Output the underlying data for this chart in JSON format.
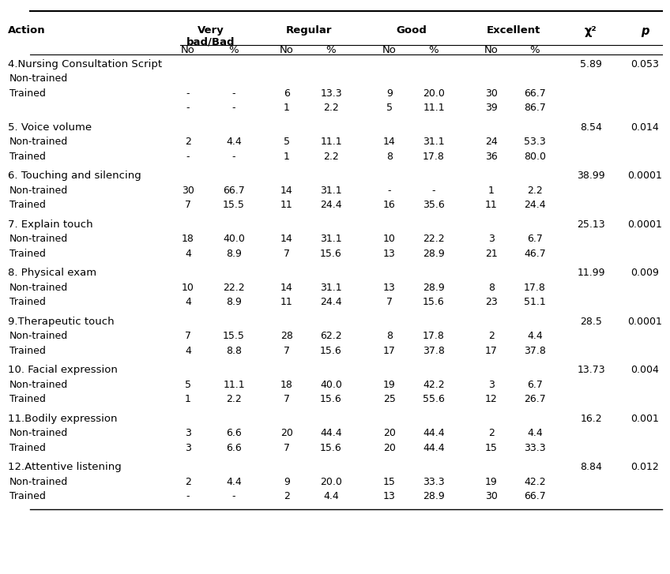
{
  "rows": [
    {
      "section": "4.Nursing Consultation Script",
      "chi2": "5.89",
      "p": "0.053",
      "sub": [
        {
          "label": "Non-trained",
          "vb_no": "",
          "vb_pct": "",
          "r_no": "",
          "r_pct": "",
          "g_no": "",
          "g_pct": "",
          "e_no": "",
          "e_pct": ""
        },
        {
          "label": "Trained",
          "vb_no": "-",
          "vb_pct": "-",
          "r_no": "6",
          "r_pct": "13.3",
          "g_no": "9",
          "g_pct": "20.0",
          "e_no": "30",
          "e_pct": "66.7"
        },
        {
          "label": "",
          "vb_no": "-",
          "vb_pct": "-",
          "r_no": "1",
          "r_pct": "2.2",
          "g_no": "5",
          "g_pct": "11.1",
          "e_no": "39",
          "e_pct": "86.7"
        }
      ]
    },
    {
      "section": "5. Voice volume",
      "chi2": "8.54",
      "p": "0.014",
      "sub": [
        {
          "label": "Non-trained",
          "vb_no": "2",
          "vb_pct": "4.4",
          "r_no": "5",
          "r_pct": "11.1",
          "g_no": "14",
          "g_pct": "31.1",
          "e_no": "24",
          "e_pct": "53.3"
        },
        {
          "label": "Trained",
          "vb_no": "-",
          "vb_pct": "-",
          "r_no": "1",
          "r_pct": "2.2",
          "g_no": "8",
          "g_pct": "17.8",
          "e_no": "36",
          "e_pct": "80.0"
        }
      ]
    },
    {
      "section": "6. Touching and silencing",
      "chi2": "38.99",
      "p": "0.0001",
      "sub": [
        {
          "label": "Non-trained",
          "vb_no": "30",
          "vb_pct": "66.7",
          "r_no": "14",
          "r_pct": "31.1",
          "g_no": "-",
          "g_pct": "-",
          "e_no": "1",
          "e_pct": "2.2"
        },
        {
          "label": "Trained",
          "vb_no": "7",
          "vb_pct": "15.5",
          "r_no": "11",
          "r_pct": "24.4",
          "g_no": "16",
          "g_pct": "35.6",
          "e_no": "11",
          "e_pct": "24.4"
        }
      ]
    },
    {
      "section": "7. Explain touch",
      "chi2": "25.13",
      "p": "0.0001",
      "sub": [
        {
          "label": "Non-trained",
          "vb_no": "18",
          "vb_pct": "40.0",
          "r_no": "14",
          "r_pct": "31.1",
          "g_no": "10",
          "g_pct": "22.2",
          "e_no": "3",
          "e_pct": "6.7"
        },
        {
          "label": "Trained",
          "vb_no": "4",
          "vb_pct": "8.9",
          "r_no": "7",
          "r_pct": "15.6",
          "g_no": "13",
          "g_pct": "28.9",
          "e_no": "21",
          "e_pct": "46.7"
        }
      ]
    },
    {
      "section": "8. Physical exam",
      "chi2": "11.99",
      "p": "0.009",
      "sub": [
        {
          "label": "Non-trained",
          "vb_no": "10",
          "vb_pct": "22.2",
          "r_no": "14",
          "r_pct": "31.1",
          "g_no": "13",
          "g_pct": "28.9",
          "e_no": "8",
          "e_pct": "17.8"
        },
        {
          "label": "Trained",
          "vb_no": "4",
          "vb_pct": "8.9",
          "r_no": "11",
          "r_pct": "24.4",
          "g_no": "7",
          "g_pct": "15.6",
          "e_no": "23",
          "e_pct": "51.1"
        }
      ]
    },
    {
      "section": "9.Therapeutic touch",
      "chi2": "28.5",
      "p": "0.0001",
      "sub": [
        {
          "label": "Non-trained",
          "vb_no": "7",
          "vb_pct": "15.5",
          "r_no": "28",
          "r_pct": "62.2",
          "g_no": "8",
          "g_pct": "17.8",
          "e_no": "2",
          "e_pct": "4.4"
        },
        {
          "label": "Trained",
          "vb_no": "4",
          "vb_pct": "8.8",
          "r_no": "7",
          "r_pct": "15.6",
          "g_no": "17",
          "g_pct": "37.8",
          "e_no": "17",
          "e_pct": "37.8"
        }
      ]
    },
    {
      "section": "10. Facial expression",
      "chi2": "13.73",
      "p": "0.004",
      "sub": [
        {
          "label": "Non-trained",
          "vb_no": "5",
          "vb_pct": "11.1",
          "r_no": "18",
          "r_pct": "40.0",
          "g_no": "19",
          "g_pct": "42.2",
          "e_no": "3",
          "e_pct": "6.7"
        },
        {
          "label": "Trained",
          "vb_no": "1",
          "vb_pct": "2.2",
          "r_no": "7",
          "r_pct": "15.6",
          "g_no": "25",
          "g_pct": "55.6",
          "e_no": "12",
          "e_pct": "26.7"
        }
      ]
    },
    {
      "section": "11.Bodily expression",
      "chi2": "16.2",
      "p": "0.001",
      "sub": [
        {
          "label": "Non-trained",
          "vb_no": "3",
          "vb_pct": "6.6",
          "r_no": "20",
          "r_pct": "44.4",
          "g_no": "20",
          "g_pct": "44.4",
          "e_no": "2",
          "e_pct": "4.4"
        },
        {
          "label": "Trained",
          "vb_no": "3",
          "vb_pct": "6.6",
          "r_no": "7",
          "r_pct": "15.6",
          "g_no": "20",
          "g_pct": "44.4",
          "e_no": "15",
          "e_pct": "33.3"
        }
      ]
    },
    {
      "section": "12.Attentive listening",
      "chi2": "8.84",
      "p": "0.012",
      "sub": [
        {
          "label": "Non-trained",
          "vb_no": "2",
          "vb_pct": "4.4",
          "r_no": "9",
          "r_pct": "20.0",
          "g_no": "15",
          "g_pct": "33.3",
          "e_no": "19",
          "e_pct": "42.2"
        },
        {
          "label": "Trained",
          "vb_no": "-",
          "vb_pct": "-",
          "r_no": "2",
          "r_pct": "4.4",
          "g_no": "13",
          "g_pct": "28.9",
          "e_no": "30",
          "e_pct": "66.7"
        }
      ]
    }
  ],
  "bg_color": "#ffffff",
  "text_color": "#000000",
  "header_fontsize": 9.5,
  "body_fontsize": 9.0,
  "note_4_nontrainedrow": true
}
